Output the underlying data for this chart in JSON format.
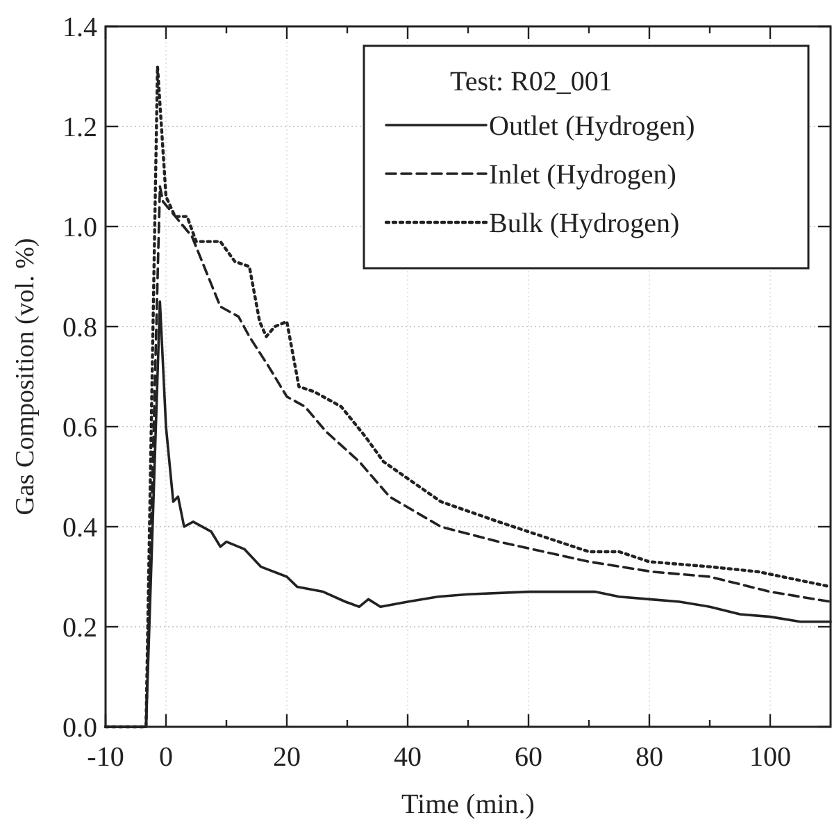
{
  "chart_data": {
    "type": "line",
    "xlabel": "Time (min.)",
    "ylabel": "Gas Composition (vol. %)",
    "legend_title": "Test: R02_001",
    "legend": "top right",
    "grid": true,
    "xlim": [
      -10,
      110
    ],
    "xticks": [
      -10,
      0,
      {
        "value": 10,
        "label": null
      },
      20,
      {
        "value": 30,
        "label": null
      },
      40,
      {
        "value": 50,
        "label": null
      },
      60,
      {
        "value": 70,
        "label": null
      },
      80,
      {
        "value": 90,
        "label": null
      },
      100
    ],
    "ylim": [
      0,
      1.4
    ],
    "yticks": [
      {
        "value": 0,
        "label": "0.0"
      },
      0.2,
      0.4,
      0.6,
      0.8,
      {
        "value": 1,
        "label": "1.0"
      },
      1.2,
      1.4
    ],
    "series": [
      {
        "name": "Outlet (Hydrogen)",
        "color": "#222222",
        "line_style": "solid",
        "x": [
          -10,
          -3.3,
          -1,
          0,
          1.2,
          2,
          3,
          4.5,
          7.5,
          9,
          10,
          13,
          15.7,
          20,
          21.7,
          26,
          29.7,
          32,
          33.5,
          35.5,
          40,
          45,
          50,
          60,
          71,
          75,
          80,
          85,
          90,
          95,
          100,
          105,
          110
        ],
        "values": [
          0,
          0,
          0.85,
          0.6,
          0.45,
          0.46,
          0.4,
          0.41,
          0.39,
          0.36,
          0.37,
          0.355,
          0.32,
          0.3,
          0.28,
          0.27,
          0.25,
          0.24,
          0.255,
          0.24,
          0.25,
          0.26,
          0.265,
          0.27,
          0.27,
          0.26,
          0.255,
          0.25,
          0.24,
          0.225,
          0.22,
          0.21,
          0.21
        ]
      },
      {
        "name": "Inlet (Hydrogen)",
        "color": "#222222",
        "line_style": "dashed",
        "x": [
          -10,
          -3.3,
          -1,
          -0.5,
          4.3,
          9,
          12,
          13.8,
          17,
          20,
          23,
          26.5,
          32,
          37,
          45.5,
          55,
          70,
          80.5,
          90,
          100,
          110
        ],
        "values": [
          0,
          0,
          1.08,
          1.05,
          0.98,
          0.84,
          0.82,
          0.78,
          0.72,
          0.66,
          0.64,
          0.59,
          0.53,
          0.46,
          0.4,
          0.37,
          0.33,
          0.31,
          0.3,
          0.27,
          0.25
        ]
      },
      {
        "name": "Bulk (Hydrogen)",
        "color": "#222222",
        "line_style": "dotted",
        "x": [
          -10,
          -3.3,
          -1.4,
          0,
          1.5,
          3.5,
          5,
          9,
          11.4,
          13.8,
          15.5,
          16.6,
          18,
          20,
          22,
          24.5,
          29,
          33,
          36,
          45.5,
          55,
          70,
          75,
          80,
          90,
          98,
          110
        ],
        "values": [
          0,
          0,
          1.32,
          1.06,
          1.02,
          1.02,
          0.97,
          0.97,
          0.93,
          0.92,
          0.81,
          0.78,
          0.8,
          0.81,
          0.68,
          0.67,
          0.64,
          0.58,
          0.53,
          0.45,
          0.41,
          0.35,
          0.35,
          0.33,
          0.32,
          0.31,
          0.28
        ]
      }
    ]
  }
}
